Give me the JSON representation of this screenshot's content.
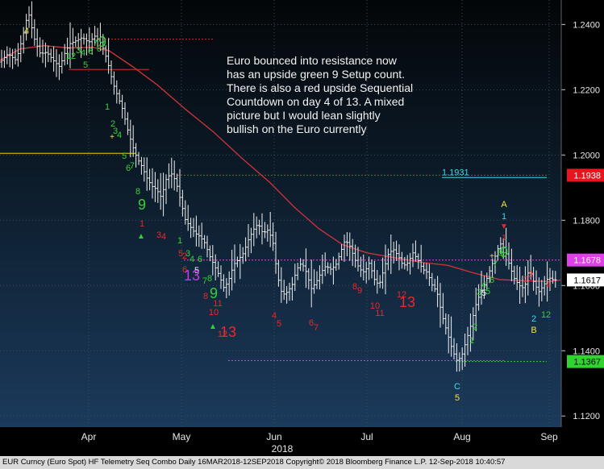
{
  "annotation": "Euro bounced into resistance now\nhas an upside green 9 Setup count.\nThere is also a red upside Sequential\nCountdown on day 4 of 13.  A mixed\npicture but I would lean slightly\nbullish on the Euro currently",
  "footer": "EUR Curncy (Euro Spot) HF Telemetry Seq Combo  Daily 16MAR2018-12SEP2018 Copyright© 2018 Bloomberg Finance L.P. 12-Sep-2018 10:40:57",
  "chart_data": {
    "type": "bar",
    "subtype": "ohlc",
    "x_axis": {
      "ticks": [
        "Apr",
        "May",
        "Jun",
        "Jul",
        "Aug",
        "Sep"
      ],
      "year_label": "2018"
    },
    "y_axis": {
      "position": "right",
      "ticks": [
        "1.1200",
        "1.1400",
        "1.1600",
        "1.1800",
        "1.2000",
        "1.2200",
        "1.2400"
      ],
      "range": [
        1.1166,
        1.2475
      ]
    },
    "price_tags": [
      {
        "label": "1.1938",
        "value": 1.1938,
        "bg": "#e8151f",
        "fg": "#ffffff"
      },
      {
        "label": "1.1678",
        "value": 1.1678,
        "bg": "#e040e8",
        "fg": "#ffffff"
      },
      {
        "label": "1.1617",
        "value": 1.1617,
        "bg": "#ffffff",
        "fg": "#000000"
      },
      {
        "label": "1.1367",
        "value": 1.1367,
        "bg": "#2fd42f",
        "fg": "#000000"
      }
    ],
    "fib_label": {
      "text": "1.1931",
      "value": 1.1931,
      "color": "#40d8e8"
    },
    "reference_lines": [
      {
        "value": 1.2005,
        "color": "#f0d000",
        "style": "solid",
        "x_from": 0,
        "x_to": 168
      },
      {
        "value": 1.2355,
        "color": "#d03030",
        "style": "dotted",
        "x_from": 130,
        "x_to": 265
      },
      {
        "value": 1.2262,
        "color": "#d03030",
        "style": "solid",
        "x_from": 85,
        "x_to": 185
      },
      {
        "value": 1.1938,
        "color": "#d03030",
        "style": "dotted",
        "x_from": 220,
        "x_to": 678
      },
      {
        "value": 1.1931,
        "color": "#40d8e8",
        "style": "solid",
        "x_from": 548,
        "x_to": 678
      },
      {
        "value": 1.1678,
        "color": "#e040e8",
        "style": "dotted",
        "x_from": 228,
        "x_to": 695
      },
      {
        "value": 1.137,
        "color": "#e040e8",
        "style": "dotted",
        "x_from": 283,
        "x_to": 625
      },
      {
        "value": 1.1367,
        "color": "#2fd42f",
        "style": "dotted",
        "x_from": 565,
        "x_to": 678
      }
    ],
    "series": [
      {
        "name": "",
        "kind": "moving-average",
        "color": "#c8323a",
        "points": [
          [
            0,
            1.229
          ],
          [
            25,
            1.2325
          ],
          [
            55,
            1.2335
          ],
          [
            85,
            1.2328
          ],
          [
            115,
            1.233
          ],
          [
            135,
            1.232
          ],
          [
            165,
            1.227
          ],
          [
            195,
            1.2215
          ],
          [
            230,
            1.214
          ],
          [
            265,
            1.207
          ],
          [
            300,
            1.199
          ],
          [
            335,
            1.1915
          ],
          [
            365,
            1.184
          ],
          [
            395,
            1.1775
          ],
          [
            425,
            1.1725
          ],
          [
            455,
            1.17
          ],
          [
            490,
            1.1685
          ],
          [
            525,
            1.167
          ],
          [
            555,
            1.1662
          ],
          [
            585,
            1.164
          ],
          [
            620,
            1.1618
          ],
          [
            650,
            1.1615
          ],
          [
            680,
            1.1612
          ],
          [
            695,
            1.1617
          ]
        ]
      }
    ],
    "ohlc_path": [
      [
        0,
        1.2285
      ],
      [
        10,
        1.231
      ],
      [
        20,
        1.229
      ],
      [
        28,
        1.236
      ],
      [
        35,
        1.244
      ],
      [
        42,
        1.236
      ],
      [
        50,
        1.231
      ],
      [
        58,
        1.2315
      ],
      [
        66,
        1.229
      ],
      [
        74,
        1.227
      ],
      [
        80,
        1.231
      ],
      [
        86,
        1.234
      ],
      [
        94,
        1.235
      ],
      [
        102,
        1.236
      ],
      [
        110,
        1.2345
      ],
      [
        118,
        1.2365
      ],
      [
        126,
        1.234
      ],
      [
        133,
        1.229
      ],
      [
        140,
        1.222
      ],
      [
        146,
        1.218
      ],
      [
        152,
        1.214
      ],
      [
        158,
        1.208
      ],
      [
        164,
        1.203
      ],
      [
        170,
        1.199
      ],
      [
        176,
        1.1965
      ],
      [
        182,
        1.193
      ],
      [
        188,
        1.1905
      ],
      [
        194,
        1.1895
      ],
      [
        200,
        1.187
      ],
      [
        206,
        1.1925
      ],
      [
        212,
        1.1945
      ],
      [
        218,
        1.192
      ],
      [
        224,
        1.186
      ],
      [
        230,
        1.18
      ],
      [
        236,
        1.178
      ],
      [
        242,
        1.176
      ],
      [
        248,
        1.175
      ],
      [
        254,
        1.173
      ],
      [
        260,
        1.169
      ],
      [
        266,
        1.166
      ],
      [
        272,
        1.163
      ],
      [
        278,
        1.159
      ],
      [
        284,
        1.162
      ],
      [
        290,
        1.1665
      ],
      [
        296,
        1.168
      ],
      [
        302,
        1.17
      ],
      [
        308,
        1.174
      ],
      [
        314,
        1.177
      ],
      [
        320,
        1.179
      ],
      [
        326,
        1.176
      ],
      [
        332,
        1.177
      ],
      [
        338,
        1.174
      ],
      [
        344,
        1.163
      ],
      [
        350,
        1.157
      ],
      [
        356,
        1.158
      ],
      [
        362,
        1.16
      ],
      [
        368,
        1.165
      ],
      [
        374,
        1.167
      ],
      [
        380,
        1.164
      ],
      [
        386,
        1.159
      ],
      [
        392,
        1.161
      ],
      [
        398,
        1.164
      ],
      [
        404,
        1.166
      ],
      [
        410,
        1.165
      ],
      [
        416,
        1.166
      ],
      [
        422,
        1.17
      ],
      [
        428,
        1.174
      ],
      [
        434,
        1.172
      ],
      [
        440,
        1.168
      ],
      [
        446,
        1.165
      ],
      [
        452,
        1.164
      ],
      [
        458,
        1.167
      ],
      [
        464,
        1.162
      ],
      [
        470,
        1.16
      ],
      [
        476,
        1.165
      ],
      [
        482,
        1.17
      ],
      [
        488,
        1.171
      ],
      [
        494,
        1.169
      ],
      [
        500,
        1.166
      ],
      [
        506,
        1.167
      ],
      [
        512,
        1.17
      ],
      [
        518,
        1.168
      ],
      [
        524,
        1.165
      ],
      [
        530,
        1.164
      ],
      [
        536,
        1.16
      ],
      [
        542,
        1.158
      ],
      [
        548,
        1.151
      ],
      [
        554,
        1.146
      ],
      [
        560,
        1.141
      ],
      [
        566,
        1.137
      ],
      [
        572,
        1.138
      ],
      [
        578,
        1.143
      ],
      [
        584,
        1.148
      ],
      [
        590,
        1.154
      ],
      [
        596,
        1.158
      ],
      [
        602,
        1.161
      ],
      [
        608,
        1.165
      ],
      [
        614,
        1.169
      ],
      [
        620,
        1.173
      ],
      [
        626,
        1.171
      ],
      [
        632,
        1.166
      ],
      [
        638,
        1.162
      ],
      [
        644,
        1.16
      ],
      [
        650,
        1.159
      ],
      [
        656,
        1.165
      ],
      [
        662,
        1.161
      ],
      [
        668,
        1.158
      ],
      [
        674,
        1.16
      ],
      [
        680,
        1.1625
      ],
      [
        686,
        1.1617
      ]
    ],
    "markers": [
      {
        "t": "4",
        "c": "#f5e23a",
        "x": 33,
        "y": 42,
        "s": 11
      },
      {
        "t": "1",
        "c": "#39d03a",
        "x": 85,
        "y": 73,
        "s": 11
      },
      {
        "t": "2",
        "c": "#39d03a",
        "x": 91,
        "y": 73,
        "s": 11
      },
      {
        "t": "3",
        "c": "#39d03a",
        "x": 97,
        "y": 66,
        "s": 11
      },
      {
        "t": "4",
        "c": "#39d03a",
        "x": 103,
        "y": 69,
        "s": 11
      },
      {
        "t": "5",
        "c": "#39d03a",
        "x": 106,
        "y": 84,
        "s": 11
      },
      {
        "t": "6",
        "c": "#39d03a",
        "x": 112,
        "y": 67,
        "s": 11
      },
      {
        "t": "7",
        "c": "#39d03a",
        "x": 118,
        "y": 57,
        "s": 11
      },
      {
        "t": "8",
        "c": "#39d03a",
        "x": 123,
        "y": 64,
        "s": 11
      },
      {
        "t": "9",
        "c": "#39d03a",
        "x": 127,
        "y": 58,
        "s": 18
      },
      {
        "t": "1",
        "c": "#39d03a",
        "x": 133,
        "y": 136,
        "s": 11
      },
      {
        "t": "2",
        "c": "#39d03a",
        "x": 140,
        "y": 157,
        "s": 11
      },
      {
        "t": "3",
        "c": "#39d03a",
        "x": 143,
        "y": 166,
        "s": 11
      },
      {
        "t": "+",
        "c": "#f5e23a",
        "x": 139,
        "y": 173,
        "s": 10
      },
      {
        "t": "4",
        "c": "#39d03a",
        "x": 148,
        "y": 171,
        "s": 11
      },
      {
        "t": "5",
        "c": "#39d03a",
        "x": 154,
        "y": 197,
        "s": 11
      },
      {
        "t": "6",
        "c": "#39d03a",
        "x": 159,
        "y": 212,
        "s": 11
      },
      {
        "t": "7",
        "c": "#39d03a",
        "x": 164,
        "y": 209,
        "s": 11
      },
      {
        "t": "8",
        "c": "#39d03a",
        "x": 171,
        "y": 241,
        "s": 11
      },
      {
        "t": "9",
        "c": "#39d03a",
        "x": 176,
        "y": 260,
        "s": 18
      },
      {
        "t": "1",
        "c": "#e8292a",
        "x": 176,
        "y": 281,
        "s": 11
      },
      {
        "t": "▲",
        "c": "#2fd42f",
        "x": 175,
        "y": 296,
        "s": 10
      },
      {
        "t": "3",
        "c": "#e8292a",
        "x": 197,
        "y": 295,
        "s": 11
      },
      {
        "t": "4",
        "c": "#e8292a",
        "x": 203,
        "y": 297,
        "s": 11
      },
      {
        "t": "1",
        "c": "#39d03a",
        "x": 223,
        "y": 302,
        "s": 11
      },
      {
        "t": "5",
        "c": "#e8292a",
        "x": 224,
        "y": 318,
        "s": 11
      },
      {
        "t": "2",
        "c": "#e8292a",
        "x": 229,
        "y": 321,
        "s": 11
      },
      {
        "t": "3",
        "c": "#39d03a",
        "x": 233,
        "y": 318,
        "s": 11
      },
      {
        "t": "6",
        "c": "#e8292a",
        "x": 229,
        "y": 338,
        "s": 11
      },
      {
        "t": "4",
        "c": "#39d03a",
        "x": 238,
        "y": 325,
        "s": 11
      },
      {
        "t": "6",
        "c": "#39d03a",
        "x": 248,
        "y": 325,
        "s": 11
      },
      {
        "t": "5",
        "c": "#e8e8e8",
        "x": 244,
        "y": 339,
        "s": 11
      },
      {
        "t": "13",
        "c": "#c43ae0",
        "x": 238,
        "y": 348,
        "s": 18
      },
      {
        "t": "7",
        "c": "#39d03a",
        "x": 254,
        "y": 352,
        "s": 11
      },
      {
        "t": "8",
        "c": "#39d03a",
        "x": 260,
        "y": 349,
        "s": 11
      },
      {
        "t": "8",
        "c": "#e8292a",
        "x": 255,
        "y": 371,
        "s": 11
      },
      {
        "t": "9",
        "c": "#39d03a",
        "x": 265,
        "y": 370,
        "s": 18
      },
      {
        "t": "11",
        "c": "#e8292a",
        "x": 270,
        "y": 380,
        "s": 11
      },
      {
        "t": "10",
        "c": "#e8292a",
        "x": 265,
        "y": 391,
        "s": 11
      },
      {
        "t": "▲",
        "c": "#2fd42f",
        "x": 264,
        "y": 408,
        "s": 10
      },
      {
        "t": "12",
        "c": "#e8292a",
        "x": 276,
        "y": 418,
        "s": 11
      },
      {
        "t": "13",
        "c": "#e8292a",
        "x": 283,
        "y": 418,
        "s": 18
      },
      {
        "t": "4",
        "c": "#e8292a",
        "x": 340,
        "y": 395,
        "s": 11
      },
      {
        "t": "5",
        "c": "#e8292a",
        "x": 346,
        "y": 405,
        "s": 11
      },
      {
        "t": "6",
        "c": "#e8292a",
        "x": 386,
        "y": 404,
        "s": 11
      },
      {
        "t": "7",
        "c": "#e8292a",
        "x": 392,
        "y": 410,
        "s": 11
      },
      {
        "t": "8",
        "c": "#e8292a",
        "x": 440,
        "y": 359,
        "s": 11
      },
      {
        "t": "9",
        "c": "#e8292a",
        "x": 446,
        "y": 364,
        "s": 11
      },
      {
        "t": "10",
        "c": "#e8292a",
        "x": 465,
        "y": 383,
        "s": 11
      },
      {
        "t": "11",
        "c": "#e8292a",
        "x": 471,
        "y": 392,
        "s": 11
      },
      {
        "t": "12",
        "c": "#e8292a",
        "x": 498,
        "y": 369,
        "s": 11
      },
      {
        "t": "13",
        "c": "#e8292a",
        "x": 505,
        "y": 381,
        "s": 18
      },
      {
        "t": "1",
        "c": "#39d03a",
        "x": 585,
        "y": 426,
        "s": 11
      },
      {
        "t": "2",
        "c": "#39d03a",
        "x": 589,
        "y": 409,
        "s": 11
      },
      {
        "t": "3",
        "c": "#39d03a",
        "x": 594,
        "y": 366,
        "s": 11
      },
      {
        "t": "4",
        "c": "#39d03a",
        "x": 600,
        "y": 357,
        "s": 11
      },
      {
        "t": "5",
        "c": "#39d03a",
        "x": 605,
        "y": 365,
        "s": 11
      },
      {
        "t": "5",
        "c": "#e8e8e8",
        "x": 600,
        "y": 367,
        "s": 11
      },
      {
        "t": "6",
        "c": "#39d03a",
        "x": 610,
        "y": 351,
        "s": 11
      },
      {
        "t": "+",
        "c": "#f5e23a",
        "x": 610,
        "y": 321,
        "s": 10
      },
      {
        "t": "7",
        "c": "#39d03a",
        "x": 614,
        "y": 331,
        "s": 11
      },
      {
        "t": "8",
        "c": "#39d03a",
        "x": 620,
        "y": 317,
        "s": 11
      },
      {
        "t": "9",
        "c": "#39d03a",
        "x": 625,
        "y": 319,
        "s": 18
      },
      {
        "t": "A",
        "c": "#f5e23a",
        "x": 625,
        "y": 257,
        "s": 11
      },
      {
        "t": "1",
        "c": "#40d8e8",
        "x": 625,
        "y": 272,
        "s": 11
      },
      {
        "t": "▼",
        "c": "#e8292a",
        "x": 625,
        "y": 284,
        "s": 10
      },
      {
        "t": "1",
        "c": "#e8292a",
        "x": 625,
        "y": 298,
        "s": 10
      },
      {
        "t": "3",
        "c": "#e8292a",
        "x": 658,
        "y": 344,
        "s": 11
      },
      {
        "t": "2",
        "c": "#e8292a",
        "x": 652,
        "y": 350,
        "s": 11
      },
      {
        "t": "4",
        "c": "#e8292a",
        "x": 680,
        "y": 357,
        "s": 11
      },
      {
        "t": "2",
        "c": "#40d8e8",
        "x": 662,
        "y": 399,
        "s": 11
      },
      {
        "t": "1",
        "c": "#39d03a",
        "x": 674,
        "y": 394,
        "s": 11
      },
      {
        "t": "2",
        "c": "#39d03a",
        "x": 680,
        "y": 394,
        "s": 11
      },
      {
        "t": "B",
        "c": "#f5e23a",
        "x": 662,
        "y": 413,
        "s": 11
      },
      {
        "t": "C",
        "c": "#40d8e8",
        "x": 567,
        "y": 483,
        "s": 11
      },
      {
        "t": "5",
        "c": "#f5e23a",
        "x": 567,
        "y": 497,
        "s": 11
      }
    ]
  }
}
